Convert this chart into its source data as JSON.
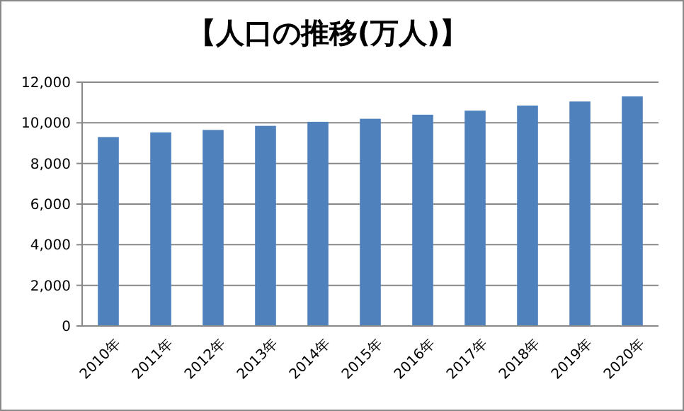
{
  "chart_data": {
    "type": "bar",
    "title": "【人口の推移(万人)】",
    "categories": [
      "2010年",
      "2011年",
      "2012年",
      "2013年",
      "2014年",
      "2015年",
      "2016年",
      "2017年",
      "2018年",
      "2019年",
      "2020年"
    ],
    "values": [
      9300,
      9530,
      9650,
      9850,
      10050,
      10200,
      10400,
      10600,
      10850,
      11050,
      11300
    ],
    "color": "#4f81bd",
    "ylim": [
      0,
      12000
    ],
    "yticks": [
      {
        "value": 0,
        "label": "0"
      },
      {
        "value": 2000,
        "label": "2,000"
      },
      {
        "value": 4000,
        "label": "4,000"
      },
      {
        "value": 6000,
        "label": "6,000"
      },
      {
        "value": 8000,
        "label": "8,000"
      },
      {
        "value": 10000,
        "label": "10,000"
      },
      {
        "value": 12000,
        "label": "12,000"
      }
    ],
    "grid": "y"
  }
}
